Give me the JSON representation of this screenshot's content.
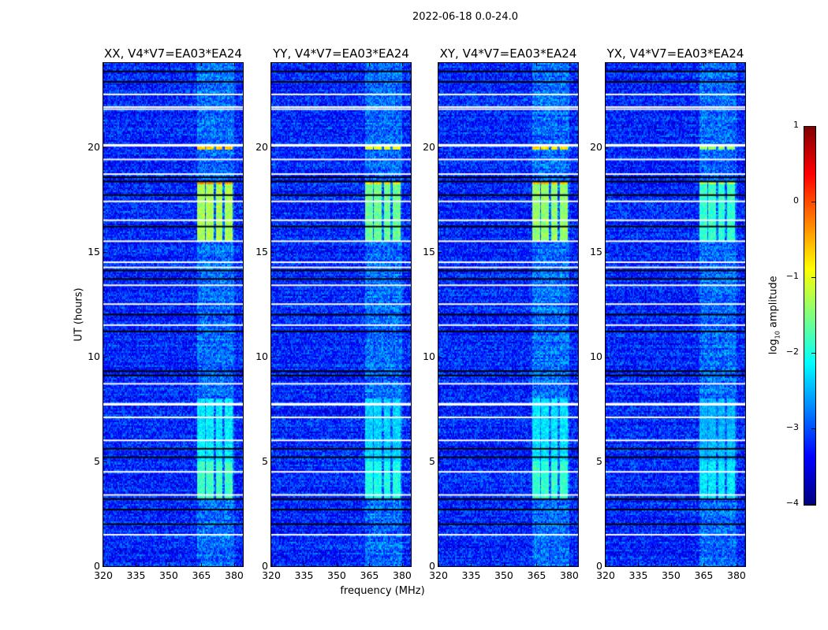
{
  "chart_data": {
    "type": "heatmap",
    "title": "2022-06-18 0.0-24.0",
    "xlabel": "frequency (MHz)",
    "ylabel": "UT (hours)",
    "xlim": [
      320,
      384
    ],
    "ylim": [
      0,
      24
    ],
    "xticks": [
      320,
      335,
      350,
      365,
      380
    ],
    "yticks": [
      0,
      5,
      10,
      15,
      20
    ],
    "panels": [
      {
        "title": "XX, V4*V7=EA03*EA24",
        "rfi_gain": 1.0
      },
      {
        "title": "YY, V4*V7=EA03*EA24",
        "rfi_gain": 0.85
      },
      {
        "title": "XY, V4*V7=EA03*EA24",
        "rfi_gain": 0.95
      },
      {
        "title": "YX, V4*V7=EA03*EA24",
        "rfi_gain": 0.7
      }
    ],
    "background_log_amplitude": -3.2,
    "rfi_band_mhz": [
      363,
      380
    ],
    "rfi_events": [
      {
        "hours": [
          15.5,
          18.4
        ],
        "log_amplitude": -1.3
      },
      {
        "hours": [
          18.2,
          18.4
        ],
        "log_amplitude": -0.4
      },
      {
        "hours": [
          19.9,
          20.0
        ],
        "log_amplitude": -0.6
      },
      {
        "hours": [
          3.2,
          5.0
        ],
        "log_amplitude": -1.8
      },
      {
        "hours": [
          5.0,
          8.0
        ],
        "log_amplitude": -2.2
      }
    ],
    "flagged_white_hours": [
      22.5,
      21.9,
      21.8,
      20.1,
      20.05,
      19.4,
      18.7,
      17.4,
      16.5,
      15.5,
      14.5,
      14.25,
      13.4,
      12.5,
      11.5,
      8.7,
      7.75,
      7.7,
      7.1,
      6.0,
      4.5,
      3.4,
      1.5
    ],
    "flagged_black_hours": [
      23.6,
      23.1,
      18.55,
      18.35,
      17.7,
      16.2,
      14.1,
      13.7,
      12.0,
      11.2,
      9.3,
      9.1,
      5.6,
      5.2,
      3.2,
      2.7,
      2.0
    ],
    "colorbar": {
      "label": "log10 amplitude",
      "label_main": "log",
      "label_sub": "10",
      "label_rest": " amplitude",
      "range": [
        -4,
        1
      ],
      "ticks": [
        "1",
        "0",
        "−1",
        "−2",
        "−3",
        "−4"
      ],
      "colormap": "jet"
    }
  }
}
